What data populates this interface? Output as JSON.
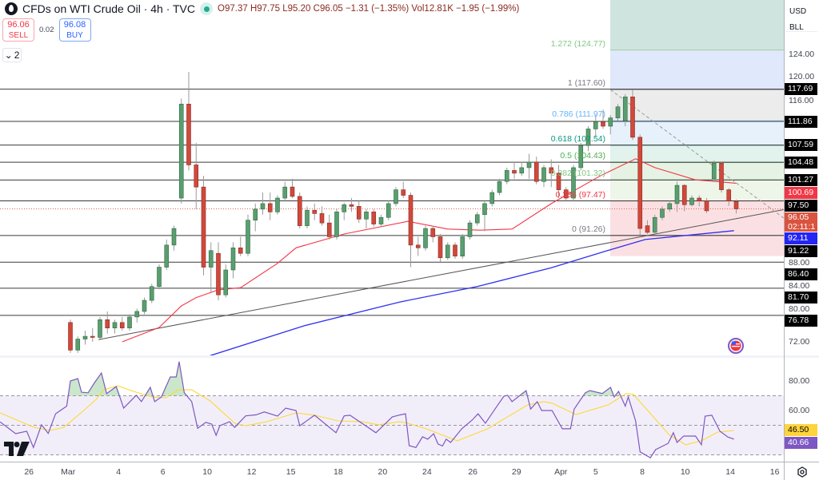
{
  "header": {
    "title": "CFDs on WTI Crude Oil · 4h · TVC",
    "open_label": "O",
    "open": "97.37",
    "high_label": "H",
    "high": "97.75",
    "low_label": "L",
    "low": "95.20",
    "close_label": "C",
    "close": "96.05",
    "change": "−1.31 (−1.35%)",
    "vol_label": "Vol",
    "vol": "12.81K",
    "vol_change": "−1.95 (−1.99%)"
  },
  "trade": {
    "sell_price": "96.06",
    "sell_label": "SELL",
    "spread": "0.02",
    "buy_price": "96.08",
    "buy_label": "BUY"
  },
  "indicators_toggle": {
    "count": "2"
  },
  "price_axis": {
    "currency": "USD",
    "unit": "BLL",
    "ticks": [
      "124.00",
      "120.00",
      "116.00",
      "88.00",
      "84.00",
      "80.00",
      "72.00"
    ],
    "tick_values": [
      124,
      120,
      116,
      88,
      84,
      80,
      72
    ],
    "tags": [
      {
        "label": "117.69",
        "value": 117.69,
        "color": "#000000"
      },
      {
        "label": "111.86",
        "value": 111.86,
        "color": "#000000"
      },
      {
        "label": "107.59",
        "value": 107.59,
        "color": "#000000"
      },
      {
        "label": "104.48",
        "value": 104.48,
        "color": "#000000"
      },
      {
        "label": "101.27",
        "value": 101.27,
        "color": "#000000"
      },
      {
        "label": "100.69",
        "value": 100.69,
        "color": "#f23645"
      },
      {
        "label": "97.50",
        "value": 97.5,
        "color": "#000000"
      },
      {
        "label": "92.11",
        "value": 92.11,
        "color": "#2424f5"
      },
      {
        "label": "91.22",
        "value": 91.22,
        "color": "#000000"
      },
      {
        "label": "86.40",
        "value": 86.4,
        "color": "#000000"
      },
      {
        "label": "81.70",
        "value": 81.7,
        "color": "#000000"
      },
      {
        "label": "76.78",
        "value": 76.78,
        "color": "#000000"
      }
    ],
    "last_price": {
      "label": "96.05",
      "countdown": "02:11:1",
      "value": 96.05,
      "color": "#d9533f"
    }
  },
  "rsi_axis": {
    "ticks": [
      "80.00",
      "60.00"
    ],
    "tick_values": [
      80,
      60
    ],
    "tags": [
      {
        "label": "46.50",
        "value": 46.5,
        "color": "#ffd43b",
        "text": "#000000"
      },
      {
        "label": "40.66",
        "value": 40.66,
        "color": "#7e57c2",
        "text": "#ffffff"
      }
    ]
  },
  "time_axis": {
    "labels": [
      "26",
      "Mar",
      "4",
      "6",
      "10",
      "12",
      "15",
      "18",
      "20",
      "24",
      "26",
      "29",
      "Apr",
      "5",
      "8",
      "10",
      "14",
      "16"
    ]
  },
  "chart_data": {
    "type": "candlestick",
    "title": "CFDs on WTI Crude Oil · 4h · TVC",
    "ylim": [
      69.5,
      133.8
    ],
    "candles": [
      [
        75.5,
        76,
        70,
        70.5
      ],
      [
        70.5,
        73,
        70,
        72.5
      ],
      [
        72.5,
        74,
        71.5,
        73
      ],
      [
        73,
        74.5,
        72,
        72.8
      ],
      [
        72.8,
        76.5,
        72.5,
        76
      ],
      [
        76,
        77.5,
        73.5,
        74.5
      ],
      [
        74.5,
        76,
        73.5,
        75.5
      ],
      [
        75.5,
        76.5,
        74,
        74.5
      ],
      [
        74.5,
        77,
        74,
        76.5
      ],
      [
        76.5,
        78,
        75.5,
        77.5
      ],
      [
        77.5,
        80,
        77,
        79.5
      ],
      [
        79.5,
        82.5,
        79,
        82
      ],
      [
        82,
        86,
        81.5,
        85.5
      ],
      [
        85.5,
        90.5,
        85,
        89.5
      ],
      [
        89.5,
        93,
        88.5,
        92.5
      ],
      [
        98,
        116,
        97,
        115
      ],
      [
        115,
        120.8,
        103,
        104
      ],
      [
        104,
        108,
        96,
        100
      ],
      [
        100,
        102,
        84,
        85.5
      ],
      [
        85.5,
        90,
        81,
        88.5
      ],
      [
        88,
        90,
        79.5,
        80.5
      ],
      [
        80.5,
        86,
        80,
        85
      ],
      [
        85,
        90,
        83.5,
        89
      ],
      [
        89,
        91,
        87.5,
        88
      ],
      [
        88,
        95,
        87.5,
        94
      ],
      [
        94,
        97,
        92,
        96
      ],
      [
        96,
        99,
        95,
        97
      ],
      [
        97,
        99,
        94,
        95.5
      ],
      [
        95.5,
        98.5,
        95,
        98
      ],
      [
        98,
        101,
        97.5,
        100
      ],
      [
        100,
        101.5,
        98,
        98.3
      ],
      [
        98.3,
        99,
        92.5,
        93
      ],
      [
        93,
        96.5,
        92.5,
        95.8
      ],
      [
        95.8,
        97,
        94,
        95.2
      ],
      [
        95.2,
        96.5,
        93,
        93.5
      ],
      [
        93.5,
        95,
        90.5,
        91
      ],
      [
        91,
        96,
        90.5,
        95.5
      ],
      [
        95.5,
        97.2,
        94,
        96.8
      ],
      [
        96.8,
        98,
        95.5,
        96.5
      ],
      [
        96.5,
        97.5,
        93.5,
        94.2
      ],
      [
        94.2,
        96,
        92.5,
        95.5
      ],
      [
        95.5,
        96,
        92.8,
        93.3
      ],
      [
        93.3,
        95,
        92.8,
        94.5
      ],
      [
        94.5,
        97.5,
        94,
        97
      ],
      [
        97,
        100,
        96.5,
        99.5
      ],
      [
        99.5,
        101,
        98,
        98.5
      ],
      [
        98.5,
        99,
        85.5,
        89.5
      ],
      [
        89.5,
        91,
        87.5,
        89
      ],
      [
        89,
        93,
        88.5,
        92.5
      ],
      [
        92.5,
        93,
        90,
        91
      ],
      [
        91,
        91.5,
        86.5,
        87.2
      ],
      [
        87.2,
        90,
        86.8,
        89.5
      ],
      [
        89.5,
        90,
        87,
        87.5
      ],
      [
        87.5,
        91.5,
        87,
        91
      ],
      [
        91,
        94,
        90.5,
        93.5
      ],
      [
        93.5,
        95.5,
        93,
        95
      ],
      [
        95,
        97.5,
        92,
        97
      ],
      [
        97,
        99.5,
        96.5,
        99
      ],
      [
        99,
        101.5,
        98.5,
        101
      ],
      [
        101,
        103.5,
        100.5,
        103
      ],
      [
        103,
        104.5,
        101.5,
        102.5
      ],
      [
        102.5,
        104.5,
        102,
        103.5
      ],
      [
        103.5,
        106,
        101.5,
        104.5
      ],
      [
        104.5,
        105.5,
        100.5,
        101
      ],
      [
        101,
        104,
        100,
        103.5
      ],
      [
        103.5,
        105,
        100,
        102.5
      ],
      [
        102.5,
        104,
        98,
        99.5
      ],
      [
        99.5,
        100,
        97.5,
        98
      ],
      [
        98,
        104,
        97.5,
        103.5
      ],
      [
        103.5,
        108,
        103,
        107.5
      ],
      [
        107.5,
        111,
        106.5,
        110.5
      ],
      [
        110.5,
        113,
        109,
        111.8
      ],
      [
        111.8,
        114,
        110.5,
        111
      ],
      [
        111,
        113,
        109.5,
        112.5
      ],
      [
        112.5,
        115,
        112,
        114.5
      ],
      [
        112,
        116.8,
        111,
        116.3
      ],
      [
        116.3,
        117.6,
        108.5,
        109
      ],
      [
        109,
        109.5,
        91.3,
        92.5
      ],
      [
        93,
        94,
        91.5,
        91.8
      ],
      [
        91.8,
        95,
        91.3,
        94.5
      ],
      [
        94.5,
        96.5,
        94,
        96
      ],
      [
        96,
        97.5,
        95.5,
        97
      ],
      [
        97,
        101,
        95.5,
        100.3
      ],
      [
        100.3,
        100.5,
        95.6,
        96.8
      ],
      [
        96.8,
        98.5,
        96.5,
        98
      ],
      [
        98,
        98.5,
        96.5,
        97.5
      ],
      [
        97.5,
        98,
        95.3,
        95.7
      ],
      [
        101.5,
        104.8,
        101,
        104.3
      ],
      [
        104.3,
        104.5,
        99,
        99.5
      ],
      [
        99.5,
        99.8,
        96.6,
        97.5
      ],
      [
        97.37,
        97.75,
        95.2,
        96.05
      ]
    ],
    "ma_red": [
      [
        17,
        72
      ],
      [
        22,
        74.6
      ],
      [
        25,
        78.5
      ],
      [
        27,
        80
      ],
      [
        30,
        81.4
      ],
      [
        33,
        81.8
      ],
      [
        38,
        86.2
      ],
      [
        40.5,
        89
      ],
      [
        47,
        91.5
      ],
      [
        55.6,
        93.8
      ],
      [
        61,
        92.4
      ],
      [
        65.4,
        92.2
      ],
      [
        69.7,
        92.4
      ],
      [
        75,
        97
      ],
      [
        81.6,
        102
      ],
      [
        86.4,
        105.1
      ],
      [
        89,
        103.5
      ],
      [
        94.5,
        101.3
      ],
      [
        100,
        100.69
      ]
    ],
    "ma_blue": [
      [
        28.9,
        69.5
      ],
      [
        41.6,
        74.9
      ],
      [
        54.5,
        79.2
      ],
      [
        65,
        82
      ],
      [
        75,
        85.4
      ],
      [
        82.6,
        88.5
      ],
      [
        87.7,
        90.5
      ],
      [
        99.7,
        92.11
      ]
    ],
    "support_trendline": [
      [
        13.8,
        72.4
      ],
      [
        106.4,
        95.9
      ]
    ],
    "resistance_trendline": [
      [
        83,
        117.6
      ],
      [
        106.4,
        94.4
      ]
    ],
    "horizontal_levels": [
      117.69,
      111.86,
      107.59,
      104.48,
      101.27,
      97.5,
      91.22,
      86.4,
      81.7,
      76.78
    ],
    "fibonacci": [
      {
        "label": "1.272 (124.77)",
        "level": 124.77,
        "color": "#81c784",
        "band": "#cfe4de"
      },
      {
        "label": "1 (117.60)",
        "level": 117.6,
        "color": "#787b86",
        "band": "#e0e8fb"
      },
      {
        "label": "0.786 (111.97)",
        "level": 111.97,
        "color": "#64b5f6",
        "band": "#ececec"
      },
      {
        "label": "0.618 (107.54)",
        "level": 107.54,
        "color": "#089981",
        "band": "#e6f1fb"
      },
      {
        "label": "0.5 (104.43)",
        "level": 104.43,
        "color": "#4caf50",
        "band": "#e2f2ec"
      },
      {
        "label": "0.382 (101.32)",
        "level": 101.32,
        "color": "#81c784",
        "band": "#e6f3e4"
      },
      {
        "label": "0.236 (97.47)",
        "level": 97.47,
        "color": "#f23645",
        "band": "#eef6ea"
      },
      {
        "label": "0 (91.26)",
        "level": 91.26,
        "color": "#787b86",
        "band": "#fbe0e3"
      }
    ],
    "rsi": {
      "ylim": [
        25.4,
        95.7
      ],
      "upper": 70,
      "middle": 50,
      "lower": 30,
      "line_color": "#7e57c2",
      "ma_color": "#fdd835",
      "values": [
        [
          0.5,
          52.3
        ],
        [
          2.6,
          44.3
        ],
        [
          4.1,
          46
        ],
        [
          5,
          35
        ],
        [
          6.1,
          50.3
        ],
        [
          7,
          44.5
        ],
        [
          8,
          57.8
        ],
        [
          9.5,
          63
        ],
        [
          10,
          80
        ],
        [
          11,
          81.6
        ],
        [
          11.5,
          72.4
        ],
        [
          12.4,
          72
        ],
        [
          13.2,
          78.4
        ],
        [
          14.2,
          85.4
        ],
        [
          14.9,
          71.4
        ],
        [
          16.2,
          76.2
        ],
        [
          17.2,
          61.6
        ],
        [
          18.9,
          70.3
        ],
        [
          19.6,
          66
        ],
        [
          20.8,
          75.7
        ],
        [
          21.4,
          66
        ],
        [
          22.3,
          69.2
        ],
        [
          23.5,
          82.7
        ],
        [
          24.3,
          82.7
        ],
        [
          24.7,
          93
        ],
        [
          25.4,
          72
        ],
        [
          26.4,
          66
        ],
        [
          27.2,
          48
        ],
        [
          28.3,
          52
        ],
        [
          29.1,
          50.8
        ],
        [
          29.7,
          43.2
        ],
        [
          30.2,
          49.7
        ],
        [
          31.5,
          52.4
        ],
        [
          32.2,
          48.6
        ],
        [
          33.7,
          56.4
        ],
        [
          35.1,
          57.1
        ],
        [
          36.2,
          59
        ],
        [
          38,
          56.2
        ],
        [
          39.1,
          61.6
        ],
        [
          40.5,
          60
        ],
        [
          41,
          49.7
        ],
        [
          43,
          56.8
        ],
        [
          45.9,
          45
        ],
        [
          47,
          56.4
        ],
        [
          47.8,
          56.8
        ],
        [
          51.3,
          45
        ],
        [
          53.5,
          55.6
        ],
        [
          54.5,
          57
        ],
        [
          55.3,
          57.8
        ],
        [
          55.8,
          36.2
        ],
        [
          56.7,
          35
        ],
        [
          57.6,
          42.2
        ],
        [
          58.3,
          40.6
        ],
        [
          59.1,
          44.3
        ],
        [
          59.7,
          37.3
        ],
        [
          60.3,
          36
        ],
        [
          60.8,
          40.6
        ],
        [
          61.4,
          38.4
        ],
        [
          62.9,
          47.6
        ],
        [
          64.3,
          53.5
        ],
        [
          65.1,
          57.8
        ],
        [
          66.1,
          51.4
        ],
        [
          67.7,
          63.2
        ],
        [
          68.6,
          69.7
        ],
        [
          69.1,
          70.3
        ],
        [
          69.7,
          66
        ],
        [
          71.6,
          73.5
        ],
        [
          72.2,
          61
        ],
        [
          73.1,
          66
        ],
        [
          73.7,
          60
        ],
        [
          75.1,
          60
        ],
        [
          76.5,
          47.6
        ],
        [
          77.6,
          47.6
        ],
        [
          78.1,
          61
        ],
        [
          79.6,
          72
        ],
        [
          80.2,
          73.5
        ],
        [
          81.9,
          71.5
        ],
        [
          83,
          75.7
        ],
        [
          83.5,
          69.2
        ],
        [
          84.1,
          73
        ],
        [
          85,
          63
        ],
        [
          85.4,
          69.2
        ],
        [
          86.4,
          53
        ],
        [
          87,
          32
        ],
        [
          88.4,
          28
        ],
        [
          89.1,
          33.5
        ],
        [
          90.8,
          37.8
        ],
        [
          91.5,
          45
        ],
        [
          92,
          38.4
        ],
        [
          92.9,
          42.7
        ],
        [
          94.5,
          42.7
        ],
        [
          95.3,
          36.8
        ],
        [
          95.8,
          56.2
        ],
        [
          96.7,
          56.8
        ],
        [
          97.8,
          46
        ],
        [
          98.9,
          42
        ],
        [
          99.7,
          40.66
        ]
      ],
      "ma": [
        [
          0.5,
          58.4
        ],
        [
          5.1,
          48.6
        ],
        [
          7.3,
          46.5
        ],
        [
          9.1,
          48.6
        ],
        [
          11.3,
          57.8
        ],
        [
          13.5,
          67.6
        ],
        [
          14.5,
          74
        ],
        [
          16.4,
          76.7
        ],
        [
          18.5,
          73
        ],
        [
          21,
          69.2
        ],
        [
          22.9,
          68.6
        ],
        [
          24.6,
          74
        ],
        [
          26.4,
          74
        ],
        [
          28.9,
          66.5
        ],
        [
          32.2,
          51.4
        ],
        [
          33.7,
          49.7
        ],
        [
          36.5,
          52.4
        ],
        [
          40.5,
          58.4
        ],
        [
          43,
          56.8
        ],
        [
          46.2,
          53
        ],
        [
          49.5,
          52.4
        ],
        [
          51.6,
          50.3
        ],
        [
          54.5,
          52.4
        ],
        [
          55.6,
          51.4
        ],
        [
          58.1,
          47.6
        ],
        [
          62.3,
          39.5
        ],
        [
          66.4,
          47.6
        ],
        [
          71.8,
          63.8
        ],
        [
          74,
          66
        ],
        [
          75.1,
          65
        ],
        [
          78.3,
          57.3
        ],
        [
          82.7,
          63.8
        ],
        [
          85.1,
          71.4
        ],
        [
          86.1,
          71
        ],
        [
          89.1,
          54
        ],
        [
          91,
          43.2
        ],
        [
          93.2,
          36.8
        ],
        [
          95.3,
          39.5
        ],
        [
          97.5,
          45.4
        ],
        [
          99.7,
          46.5
        ]
      ]
    },
    "colors": {
      "up": "#5a9e6f",
      "down": "#d0493c",
      "ma_red": "#f23645",
      "ma_blue": "#2f2ff0",
      "last_price_line": "#e06050"
    }
  }
}
